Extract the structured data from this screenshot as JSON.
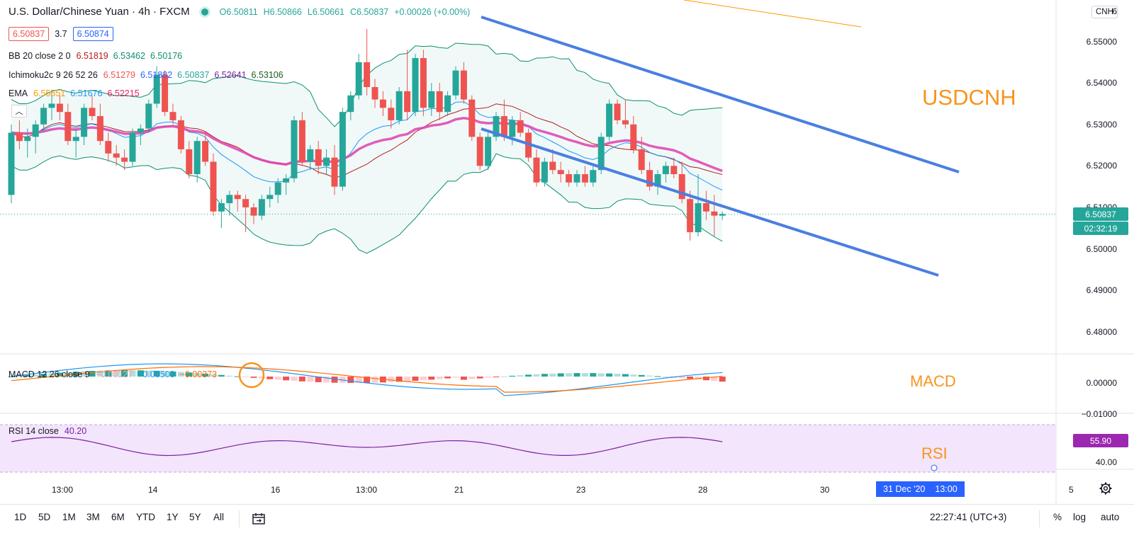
{
  "header": {
    "symbol": "U.S. Dollar/Chinese Yuan · 4h · FXCM",
    "ohlc": {
      "o": "O6.50811",
      "h": "H6.50866",
      "l": "L6.50661",
      "c": "C6.50837",
      "chg": "+0.00026 (+0.00%)"
    },
    "sell_price": "6.50837",
    "spread": "3.7",
    "buy_price": "6.50874",
    "currency_badge": "CNH"
  },
  "indicators": {
    "bb": {
      "label": "BB 20 close 2 0",
      "v1": "6.51819",
      "v2": "6.53462",
      "v3": "6.50176",
      "c1": "#b71c1c",
      "c2": "#0d8f6f",
      "c3": "#0d8f6f"
    },
    "ichimoku": {
      "label": "Ichimoku2c 9 26 52 26",
      "v1": "6.51279",
      "v2": "6.51882",
      "v3": "6.50837",
      "v4": "6.52641",
      "v5": "6.53106",
      "c1": "#ef5350",
      "c2": "#2962ff",
      "c3": "#26a69a",
      "c4": "#7b1fa2",
      "c5": "#1b5e20"
    },
    "ema": {
      "label": "EMA",
      "v1": "6.55551",
      "v2": "6.51676",
      "v3": "6.52215",
      "c1": "#ff9800",
      "c2": "#2196f3",
      "c3": "#e91e63"
    },
    "macd": {
      "label": "MACD 12 26 close 9",
      "v1": "−0.00127",
      "v2": "−0.00500",
      "v3": "−0.00373",
      "c1": "#f4a7b9",
      "c2": "#2196f3",
      "c3": "#ff6d00"
    },
    "rsi": {
      "label": "RSI 14 close",
      "v1": "40.20",
      "c1": "#7b1fa2"
    }
  },
  "annotations": {
    "usdcnh": "USDCNH",
    "macd": "MACD",
    "rsi": "RSI"
  },
  "price_axis": {
    "labels": [
      "6.55000",
      "6.54000",
      "6.53000",
      "6.52000",
      "6.51000",
      "6.50000",
      "6.49000",
      "6.48000"
    ],
    "top_cut": "6"
  },
  "price_tags": {
    "last_price": "6.50837",
    "countdown": "02:32:19"
  },
  "macd_axis": {
    "labels": [
      "0.00000",
      "−0.01000"
    ]
  },
  "rsi_axis": {
    "labels": [
      "40.00"
    ],
    "tag": "55.90"
  },
  "time_axis": {
    "labels": [
      "13:00",
      "14",
      "16",
      "13:00",
      "21",
      "23",
      "28",
      "30",
      "5"
    ],
    "crosshair_date": "31 Dec '20",
    "crosshair_time": "13:00"
  },
  "bottom_bar": {
    "ranges": [
      "1D",
      "5D",
      "1M",
      "3M",
      "6M",
      "YTD",
      "1Y",
      "5Y",
      "All"
    ],
    "clock": "22:27:41 (UTC+3)",
    "percent": "%",
    "log": "log",
    "auto": "auto"
  },
  "colors": {
    "up": "#26a69a",
    "down": "#ef5350",
    "channel": "#4a7fe0",
    "annotation": "#f7941d"
  },
  "chart_data": {
    "type": "candlestick",
    "ylim": [
      6.475,
      6.56
    ],
    "candles": [
      [
        6.513,
        6.53,
        6.511,
        6.528
      ],
      [
        6.528,
        6.531,
        6.524,
        6.526
      ],
      [
        6.526,
        6.529,
        6.522,
        6.527
      ],
      [
        6.527,
        6.531,
        6.523,
        6.53
      ],
      [
        6.53,
        6.535,
        6.528,
        6.534
      ],
      [
        6.534,
        6.538,
        6.531,
        6.535
      ],
      [
        6.535,
        6.537,
        6.531,
        6.533
      ],
      [
        6.533,
        6.535,
        6.525,
        6.526
      ],
      [
        6.526,
        6.529,
        6.522,
        6.527
      ],
      [
        6.527,
        6.535,
        6.525,
        6.534
      ],
      [
        6.534,
        6.537,
        6.531,
        6.532
      ],
      [
        6.532,
        6.535,
        6.525,
        6.526
      ],
      [
        6.526,
        6.528,
        6.521,
        6.523
      ],
      [
        6.523,
        6.525,
        6.52,
        6.522
      ],
      [
        6.522,
        6.524,
        6.519,
        6.521
      ],
      [
        6.521,
        6.529,
        6.52,
        6.528
      ],
      [
        6.528,
        6.53,
        6.525,
        6.529
      ],
      [
        6.529,
        6.536,
        6.528,
        6.535
      ],
      [
        6.535,
        6.544,
        6.534,
        6.542
      ],
      [
        6.542,
        6.543,
        6.532,
        6.533
      ],
      [
        6.533,
        6.535,
        6.53,
        6.531
      ],
      [
        6.531,
        6.532,
        6.523,
        6.524
      ],
      [
        6.524,
        6.526,
        6.517,
        6.518
      ],
      [
        6.518,
        6.527,
        6.516,
        6.526
      ],
      [
        6.526,
        6.528,
        6.52,
        6.521
      ],
      [
        6.521,
        6.523,
        6.508,
        6.509
      ],
      [
        6.509,
        6.512,
        6.505,
        6.511
      ],
      [
        6.511,
        6.514,
        6.508,
        6.513
      ],
      [
        6.513,
        6.514,
        6.509,
        6.512
      ],
      [
        6.512,
        6.513,
        6.504,
        6.51
      ],
      [
        6.51,
        6.511,
        6.506,
        6.508
      ],
      [
        6.508,
        6.513,
        6.507,
        6.512
      ],
      [
        6.512,
        6.515,
        6.51,
        6.513
      ],
      [
        6.513,
        6.517,
        6.511,
        6.516
      ],
      [
        6.516,
        6.518,
        6.513,
        6.517
      ],
      [
        6.517,
        6.532,
        6.516,
        6.531
      ],
      [
        6.531,
        6.533,
        6.52,
        6.521
      ],
      [
        6.521,
        6.525,
        6.519,
        6.524
      ],
      [
        6.524,
        6.526,
        6.518,
        6.52
      ],
      [
        6.52,
        6.524,
        6.518,
        6.522
      ],
      [
        6.522,
        6.525,
        6.513,
        6.515
      ],
      [
        6.515,
        6.534,
        6.514,
        6.533
      ],
      [
        6.533,
        6.538,
        6.531,
        6.537
      ],
      [
        6.537,
        6.547,
        6.536,
        6.545
      ],
      [
        6.545,
        6.553,
        6.537,
        6.539
      ],
      [
        6.539,
        6.541,
        6.534,
        6.536
      ],
      [
        6.536,
        6.538,
        6.532,
        6.534
      ],
      [
        6.534,
        6.536,
        6.529,
        6.531
      ],
      [
        6.531,
        6.539,
        6.53,
        6.538
      ],
      [
        6.538,
        6.548,
        6.531,
        6.533
      ],
      [
        6.533,
        6.547,
        6.532,
        6.546
      ],
      [
        6.546,
        6.548,
        6.532,
        6.534
      ],
      [
        6.534,
        6.54,
        6.532,
        6.538
      ],
      [
        6.538,
        6.54,
        6.531,
        6.533
      ],
      [
        6.533,
        6.538,
        6.532,
        6.537
      ],
      [
        6.537,
        6.544,
        6.536,
        6.543
      ],
      [
        6.543,
        6.545,
        6.535,
        6.536
      ],
      [
        6.536,
        6.537,
        6.526,
        6.527
      ],
      [
        6.527,
        6.528,
        6.519,
        6.52
      ],
      [
        6.52,
        6.528,
        6.519,
        6.527
      ],
      [
        6.527,
        6.533,
        6.526,
        6.532
      ],
      [
        6.532,
        6.536,
        6.526,
        6.527
      ],
      [
        6.527,
        6.532,
        6.525,
        6.531
      ],
      [
        6.531,
        6.533,
        6.527,
        6.528
      ],
      [
        6.528,
        6.529,
        6.521,
        6.522
      ],
      [
        6.522,
        6.524,
        6.515,
        6.516
      ],
      [
        6.516,
        6.522,
        6.515,
        6.521
      ],
      [
        6.521,
        6.524,
        6.518,
        6.519
      ],
      [
        6.519,
        6.521,
        6.516,
        6.518
      ],
      [
        6.518,
        6.519,
        6.515,
        6.516
      ],
      [
        6.516,
        6.519,
        6.515,
        6.518
      ],
      [
        6.518,
        6.52,
        6.515,
        6.516
      ],
      [
        6.516,
        6.52,
        6.515,
        6.519
      ],
      [
        6.519,
        6.528,
        6.518,
        6.527
      ],
      [
        6.527,
        6.536,
        6.526,
        6.535
      ],
      [
        6.535,
        6.536,
        6.53,
        6.531
      ],
      [
        6.531,
        6.536,
        6.529,
        6.53
      ],
      [
        6.53,
        6.532,
        6.523,
        6.524
      ],
      [
        6.524,
        6.527,
        6.518,
        6.519
      ],
      [
        6.519,
        6.521,
        6.514,
        6.515
      ],
      [
        6.515,
        6.519,
        6.513,
        6.518
      ],
      [
        6.518,
        6.521,
        6.516,
        6.52
      ],
      [
        6.52,
        6.522,
        6.517,
        6.518
      ],
      [
        6.518,
        6.521,
        6.511,
        6.512
      ],
      [
        6.512,
        6.514,
        6.502,
        6.504
      ],
      [
        6.504,
        6.518,
        6.503,
        6.511
      ],
      [
        6.511,
        6.514,
        6.507,
        6.509
      ],
      [
        6.509,
        6.513,
        6.503,
        6.508
      ],
      [
        6.508,
        6.509,
        6.507,
        6.5084
      ]
    ]
  }
}
